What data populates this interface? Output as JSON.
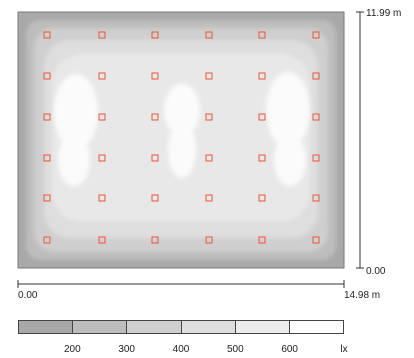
{
  "plan": {
    "width_label": "14.98 m",
    "height_label": "11.99 m",
    "origin_x_label": "0.00",
    "origin_y_label": "0.00",
    "luminaire_color": "#e8553a",
    "luminaire_rows": 6,
    "luminaire_cols": 6
  },
  "legend": {
    "unit": "lx",
    "ticks": [
      "200",
      "300",
      "400",
      "500",
      "600"
    ],
    "colors": [
      "#a8a8a8",
      "#bdbdbd",
      "#cfcfcf",
      "#dedede",
      "#ececec",
      "#ffffff"
    ]
  }
}
